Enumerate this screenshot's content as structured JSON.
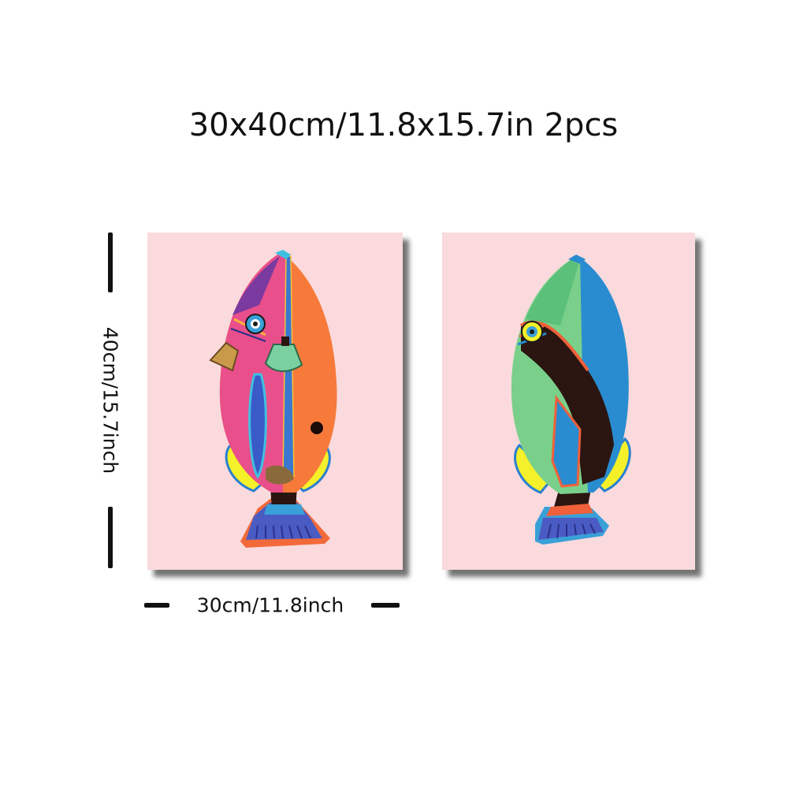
{
  "header": {
    "title": "30x40cm/11.8x15.7in 2pcs"
  },
  "dimensions": {
    "height_label": "40cm/15.7inch",
    "width_label": "30cm/11.8inch"
  },
  "artworks": [
    {
      "subject": "pink-orange-fish-painting",
      "background": "#fadadd"
    },
    {
      "subject": "green-blue-fish-painting",
      "background": "#fadadd"
    }
  ]
}
